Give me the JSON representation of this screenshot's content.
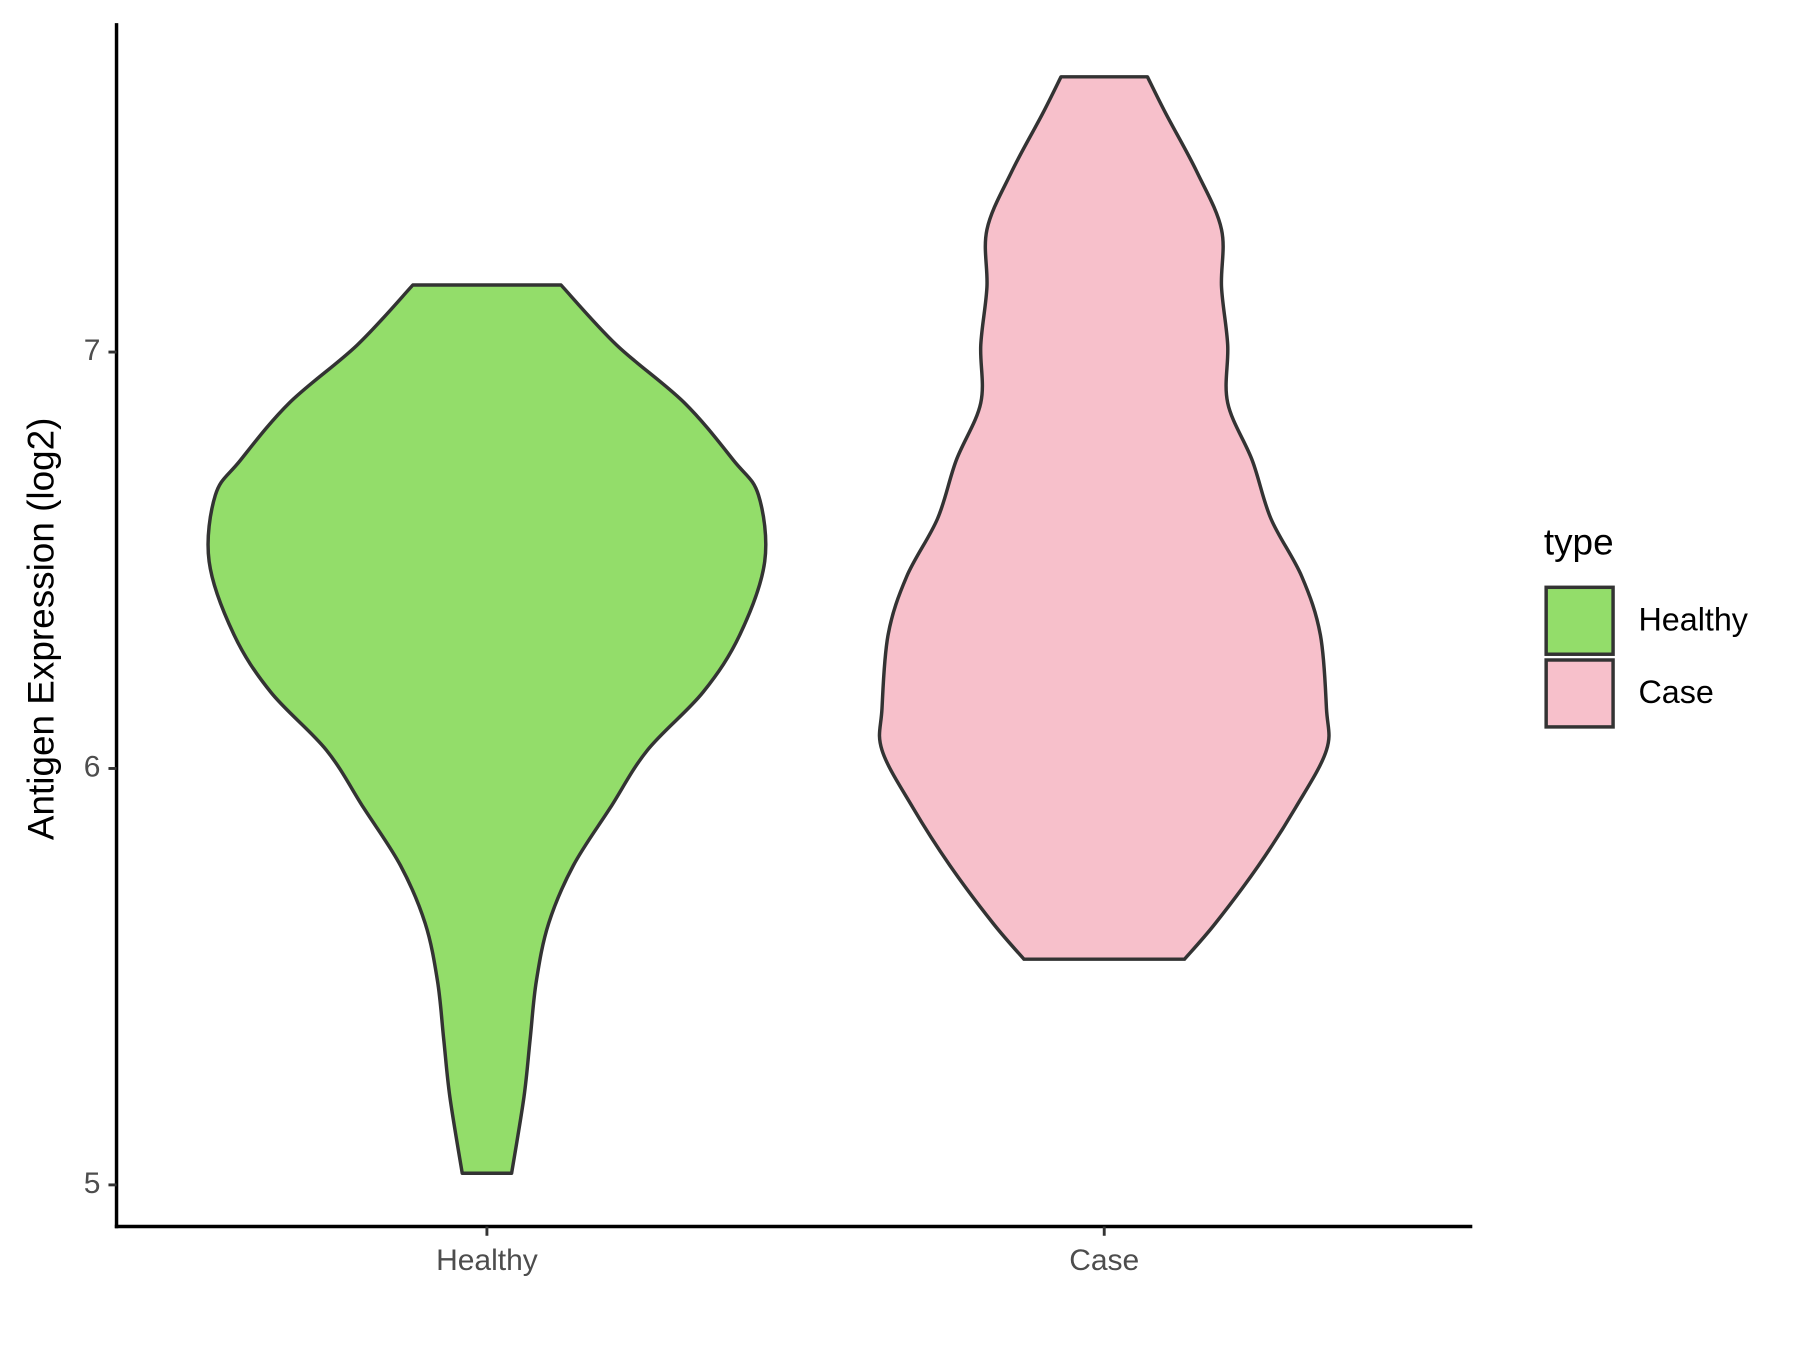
{
  "chart_data": {
    "type": "violin",
    "y_label": "Antigen Expression (log2)",
    "categories": [
      "Healthy",
      "Case"
    ],
    "ylim": [
      4.9,
      7.79
    ],
    "yticks": [
      5,
      6,
      7
    ],
    "legend_title": "type",
    "legend": "right",
    "series": [
      {
        "name": "Healthy",
        "color": "#93dd6a",
        "y": [
          7.161,
          7.017,
          6.878,
          6.739,
          6.656,
          6.497,
          6.322,
          6.183,
          6.044,
          5.906,
          5.767,
          5.628,
          5.489,
          5.35,
          5.211,
          5.028
        ],
        "widths": [
          0.12,
          0.21,
          0.32,
          0.4,
          0.44,
          0.45,
          0.41,
          0.35,
          0.26,
          0.2,
          0.14,
          0.1,
          0.08,
          0.07,
          0.06,
          0.04
        ]
      },
      {
        "name": "Case",
        "color": "#f7c0cb",
        "y": [
          7.661,
          7.572,
          7.433,
          7.294,
          7.156,
          7.017,
          6.878,
          6.739,
          6.6,
          6.461,
          6.322,
          6.144,
          6.044,
          5.906,
          5.767,
          5.628,
          5.542
        ],
        "widths": [
          0.07,
          0.1,
          0.15,
          0.19,
          0.19,
          0.2,
          0.2,
          0.24,
          0.27,
          0.32,
          0.35,
          0.36,
          0.36,
          0.31,
          0.25,
          0.18,
          0.13
        ]
      }
    ]
  }
}
